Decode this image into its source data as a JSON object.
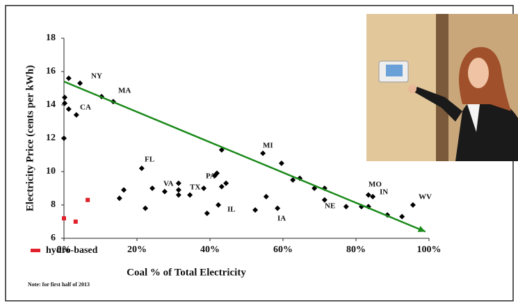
{
  "chart_data": {
    "type": "scatter",
    "xlabel": "Coal % of Total Electricity",
    "ylabel": "Electricity Price (cents per kWh)",
    "note": "Note: for first half of 2013",
    "xlim": [
      0,
      100
    ],
    "xticks": [
      {
        "value": 0,
        "label": "0%"
      },
      {
        "value": 20,
        "label": "20%"
      },
      {
        "value": 40,
        "label": "40%"
      },
      {
        "value": 60,
        "label": "60%"
      },
      {
        "value": 80,
        "label": "80%"
      },
      {
        "value": 100,
        "label": "100%"
      }
    ],
    "ylim": [
      6,
      18
    ],
    "yticks": [
      6,
      8,
      10,
      12,
      14,
      16,
      18
    ],
    "series": [
      {
        "color": "#000000",
        "x": [
          0,
          0.2,
          0.2,
          1.3,
          1.3,
          3.4,
          4.4,
          10.3,
          13.5,
          15.2,
          16.4,
          21.3,
          22.3,
          24.2,
          27.6,
          31.4,
          31.4,
          31.4,
          34.5,
          38.3,
          39.2,
          41.3,
          41.9,
          42.3,
          43.2,
          44.4,
          43.2,
          52.4,
          54.5,
          55.4,
          58.5,
          59.6,
          62.7,
          64.6,
          68.6,
          71.4,
          71.4,
          77.3,
          81.5,
          83.4,
          84.6,
          83.4,
          88.6,
          92.6,
          95.6
        ],
        "values": [
          12.0,
          14.45,
          14.1,
          13.75,
          15.6,
          13.4,
          15.3,
          14.5,
          14.2,
          8.4,
          8.9,
          10.2,
          7.8,
          9.0,
          8.8,
          9.3,
          8.9,
          8.6,
          8.6,
          9.0,
          7.5,
          9.75,
          9.9,
          8.0,
          9.1,
          9.3,
          11.3,
          7.7,
          11.1,
          8.5,
          7.8,
          10.5,
          9.5,
          9.6,
          9.0,
          9.0,
          8.3,
          7.9,
          7.9,
          8.6,
          8.5,
          7.9,
          7.4,
          7.3,
          8.0
        ]
      },
      {
        "name": "hydro-based",
        "color": "#e0202a",
        "x": [
          0,
          3.2,
          6.5
        ],
        "values": [
          7.2,
          7.0,
          8.3
        ]
      }
    ],
    "trendline": {
      "color": "#1a8a1a",
      "x": [
        0,
        99
      ],
      "values": [
        15.4,
        6.4
      ]
    },
    "annotations": [
      "NY",
      "CA",
      "MA",
      "FL",
      "VA",
      "TX",
      "PA",
      "IL",
      "MI",
      "IA",
      "NE",
      "MO",
      "IN",
      "WV"
    ]
  }
}
